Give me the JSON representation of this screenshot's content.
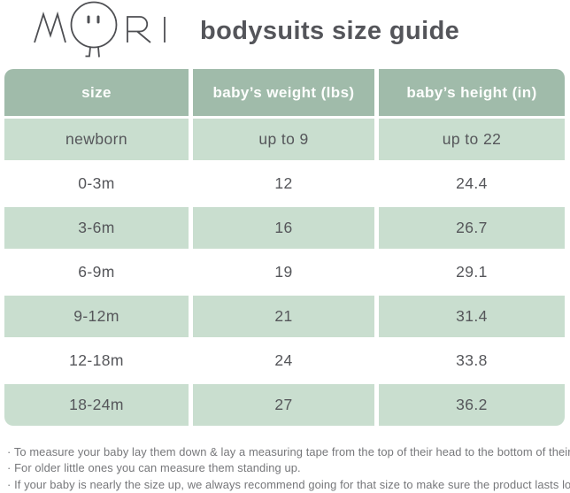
{
  "brand": {
    "logo_alt": "MORI"
  },
  "header": {
    "title": "bodysuits size guide"
  },
  "table": {
    "columns": [
      "size",
      "baby’s weight (lbs)",
      "baby’s height (in)"
    ],
    "rows": [
      [
        "newborn",
        "up to 9",
        "up to 22"
      ],
      [
        "0-3m",
        "12",
        "24.4"
      ],
      [
        "3-6m",
        "16",
        "26.7"
      ],
      [
        "6-9m",
        "19",
        "29.1"
      ],
      [
        "9-12m",
        "21",
        "31.4"
      ],
      [
        "12-18m",
        "24",
        "33.8"
      ],
      [
        "18-24m",
        "27",
        "36.2"
      ]
    ]
  },
  "notes": [
    "· To measure your baby lay them down & lay a measuring tape from the top of their head to the bottom of their heel.",
    "· For older little ones you can measure them standing up.",
    "· If your baby is nearly the size up, we always recommend going for that size to make sure the product lasts longer."
  ],
  "colors": {
    "header_green": "#a0bbaa",
    "row_green": "#c9decf",
    "ink": "#54555a",
    "note_text": "#76777a"
  }
}
